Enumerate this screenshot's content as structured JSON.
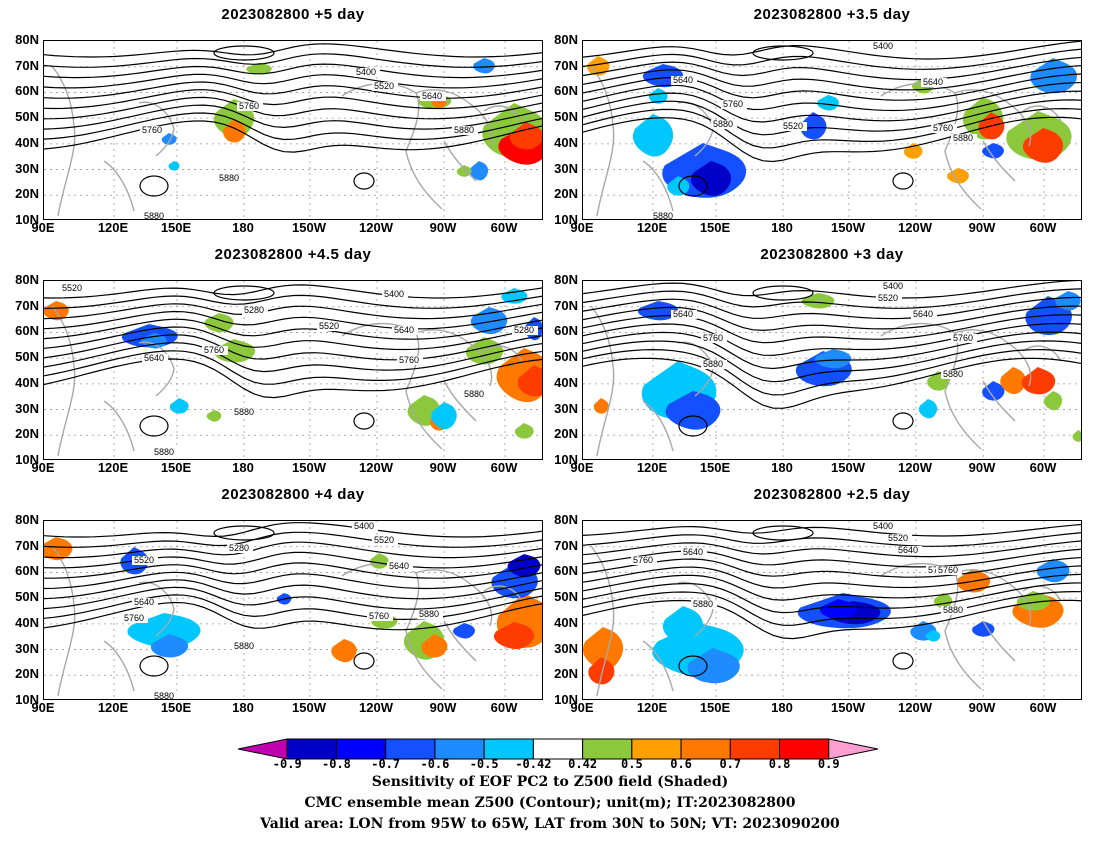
{
  "panels": [
    {
      "title": "2023082800  +5  day",
      "contour_labels": [
        "5400",
        "5520",
        "5640",
        "5760",
        "5760",
        "5880",
        "5880",
        "5880"
      ]
    },
    {
      "title": "2023082800  +3.5  day",
      "contour_labels": [
        "5400",
        "5640",
        "5640",
        "5760",
        "5880",
        "5520",
        "5760",
        "5880",
        "5880"
      ]
    },
    {
      "title": "2023082800  +4.5  day",
      "contour_labels": [
        "5520",
        "5400",
        "5280",
        "5520",
        "5640",
        "5640",
        "5760",
        "5760",
        "5280",
        "5880",
        "5880",
        "5880"
      ]
    },
    {
      "title": "2023082800  +3  day",
      "contour_labels": [
        "5400",
        "5520",
        "5640",
        "5640",
        "5760",
        "5880",
        "5760",
        "5880"
      ]
    },
    {
      "title": "2023082800  +4  day",
      "contour_labels": [
        "5400",
        "5520",
        "5280",
        "5520",
        "5640",
        "5640",
        "5760",
        "5760",
        "5880",
        "5880",
        "5880"
      ]
    },
    {
      "title": "2023082800  +2.5  day",
      "contour_labels": [
        "5400",
        "5520",
        "5640",
        "5640",
        "5760",
        "5760",
        "5760",
        "5880",
        "5880"
      ]
    }
  ],
  "lat_labels": [
    "80N",
    "70N",
    "60N",
    "50N",
    "40N",
    "30N",
    "20N",
    "10N"
  ],
  "lon_labels": [
    "90E",
    "120E",
    "150E",
    "180",
    "150W",
    "120W",
    "90W",
    "60W"
  ],
  "colorbar": {
    "labels": [
      "-0.9",
      "-0.8",
      "-0.7",
      "-0.6",
      "-0.5",
      "-0.42",
      "0.42",
      "0.5",
      "0.6",
      "0.7",
      "0.8",
      "0.9"
    ],
    "colors": [
      "#c000b0",
      "#0000c8",
      "#0000ff",
      "#1450ff",
      "#1e8cff",
      "#00c8ff",
      "#ffffff",
      "#8cc83c",
      "#ffa000",
      "#ff7800",
      "#ff3c00",
      "#ff0000",
      "#ff9ed2"
    ]
  },
  "caption": {
    "line1": "Sensitivity of EOF PC2 to Z500 field (Shaded)",
    "line2": "CMC ensemble mean Z500 (Contour); unit(m); IT:2023082800",
    "line3": "Valid area: LON from 95W to 65W, LAT from 30N to 50N; VT: 2023090200"
  }
}
